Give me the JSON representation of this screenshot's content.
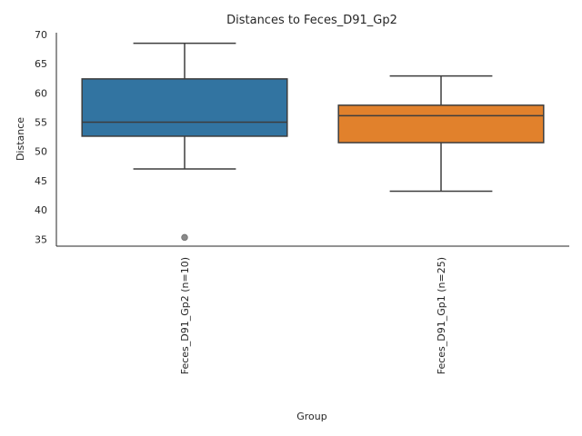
{
  "chart_data": {
    "type": "box",
    "title": "Distances to Feces_D91_Gp2",
    "xlabel": "Group",
    "ylabel": "Distance",
    "ylim": [
      33.8,
      70.3
    ],
    "yticks": [
      35,
      40,
      45,
      50,
      55,
      60,
      65,
      70
    ],
    "grid": false,
    "categories": [
      "Feces_D91_Gp2 (n=10)",
      "Feces_D91_Gp1 (n=25)"
    ],
    "boxes": [
      {
        "name": "Feces_D91_Gp2 (n=10)",
        "color": "#3274a1",
        "whisker_low": 47.0,
        "q1": 52.6,
        "median": 55.0,
        "q3": 62.4,
        "whisker_high": 68.5,
        "outliers": [
          35.3
        ]
      },
      {
        "name": "Feces_D91_Gp1 (n=25)",
        "color": "#e1812c",
        "whisker_low": 43.2,
        "q1": 51.5,
        "median": 56.1,
        "q3": 57.9,
        "whisker_high": 62.9,
        "outliers": []
      }
    ]
  }
}
